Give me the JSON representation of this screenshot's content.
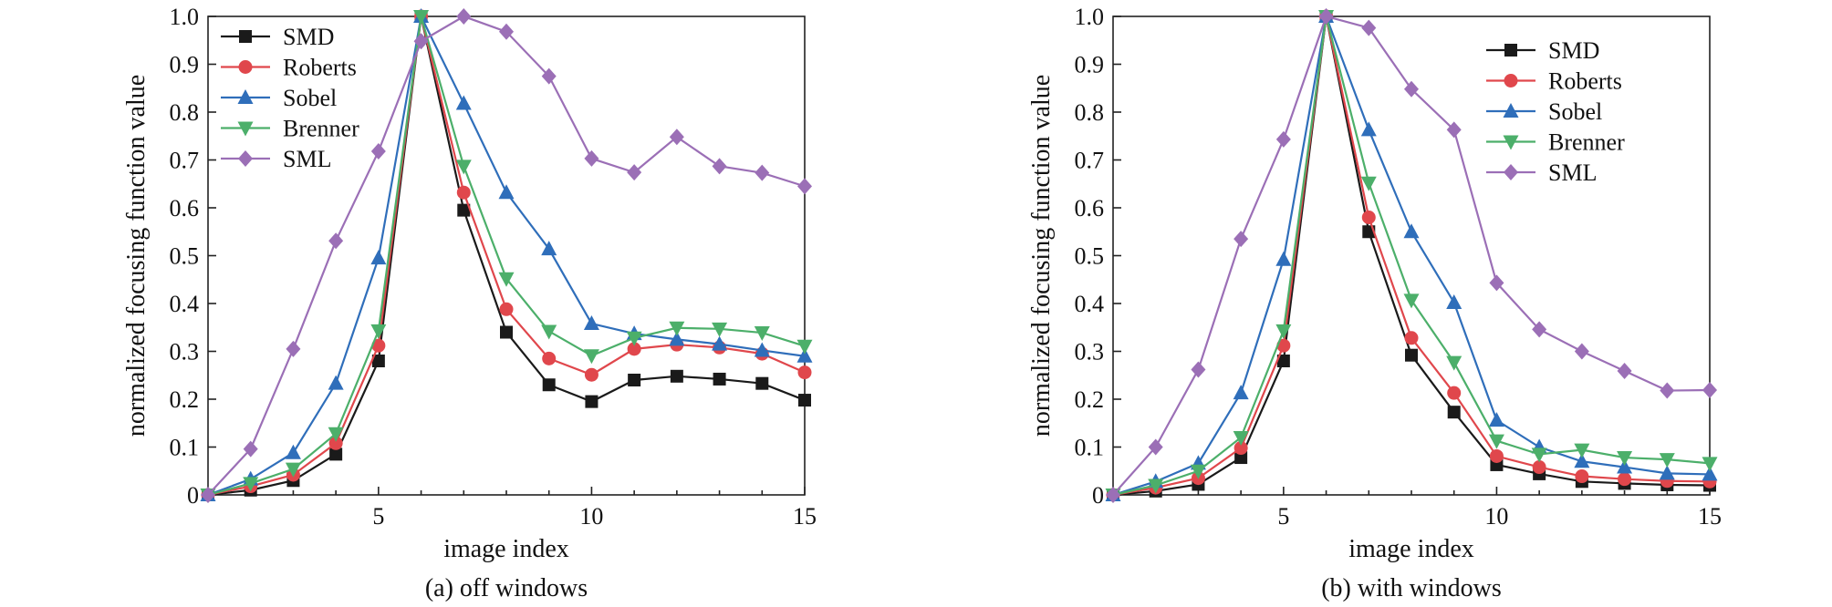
{
  "chart_data": [
    {
      "type": "line",
      "caption": "(a) off windows",
      "xlabel": "image index",
      "ylabel": "normalized focusing function value",
      "xlim": [
        1,
        15
      ],
      "ylim": [
        0,
        1.0
      ],
      "xticks": [
        5,
        10,
        15
      ],
      "yticks": [
        0,
        0.1,
        0.2,
        0.3,
        0.4,
        0.5,
        0.6,
        0.7,
        0.8,
        0.9,
        1.0
      ],
      "ytick_labels": [
        "0",
        "0.1",
        "0.2",
        "0.3",
        "0.4",
        "0.5",
        "0.6",
        "0.7",
        "0.8",
        "0.9",
        "1.0"
      ],
      "legend_position": "top-left",
      "grid": false,
      "x": [
        1,
        2,
        3,
        4,
        5,
        6,
        7,
        8,
        9,
        10,
        11,
        12,
        13,
        14,
        15
      ],
      "series": [
        {
          "name": "SMD",
          "color": "#1a1a1a",
          "marker": "square",
          "values": [
            0,
            0.01,
            0.03,
            0.085,
            0.28,
            1.0,
            0.595,
            0.34,
            0.23,
            0.195,
            0.24,
            0.248,
            0.242,
            0.233,
            0.198
          ]
        },
        {
          "name": "Roberts",
          "color": "#e0474c",
          "marker": "circle",
          "values": [
            0,
            0.018,
            0.042,
            0.108,
            0.312,
            1.0,
            0.632,
            0.388,
            0.285,
            0.251,
            0.305,
            0.314,
            0.308,
            0.295,
            0.256
          ]
        },
        {
          "name": "Sobel",
          "color": "#2f6eba",
          "marker": "triangle-up",
          "values": [
            0,
            0.033,
            0.088,
            0.233,
            0.495,
            1.0,
            0.818,
            0.632,
            0.514,
            0.358,
            0.337,
            0.325,
            0.315,
            0.302,
            0.29
          ]
        },
        {
          "name": "Brenner",
          "color": "#4caf6a",
          "marker": "triangle-down",
          "values": [
            0,
            0.024,
            0.054,
            0.128,
            0.343,
            1.0,
            0.687,
            0.452,
            0.342,
            0.291,
            0.328,
            0.349,
            0.347,
            0.339,
            0.311
          ]
        },
        {
          "name": "SML",
          "color": "#9b6fb6",
          "marker": "diamond",
          "values": [
            0,
            0.096,
            0.305,
            0.531,
            0.718,
            0.948,
            1.0,
            0.968,
            0.875,
            0.703,
            0.674,
            0.748,
            0.687,
            0.673,
            0.645
          ]
        }
      ]
    },
    {
      "type": "line",
      "caption": "(b) with windows",
      "xlabel": "image index",
      "ylabel": "normalized focusing function value",
      "xlim": [
        1,
        15
      ],
      "ylim": [
        0,
        1.0
      ],
      "xticks": [
        5,
        10,
        15
      ],
      "yticks": [
        0,
        0.1,
        0.2,
        0.3,
        0.4,
        0.5,
        0.6,
        0.7,
        0.8,
        0.9,
        1.0
      ],
      "ytick_labels": [
        "0",
        "0.1",
        "0.2",
        "0.3",
        "0.4",
        "0.5",
        "0.6",
        "0.7",
        "0.8",
        "0.9",
        "1.0"
      ],
      "legend_position": "top-right",
      "grid": false,
      "x": [
        1,
        2,
        3,
        4,
        5,
        6,
        7,
        8,
        9,
        10,
        11,
        12,
        13,
        14,
        15
      ],
      "series": [
        {
          "name": "SMD",
          "color": "#1a1a1a",
          "marker": "square",
          "values": [
            0,
            0.008,
            0.022,
            0.078,
            0.28,
            1.0,
            0.55,
            0.292,
            0.173,
            0.063,
            0.044,
            0.028,
            0.024,
            0.021,
            0.02
          ]
        },
        {
          "name": "Roberts",
          "color": "#e0474c",
          "marker": "circle",
          "values": [
            0,
            0.015,
            0.035,
            0.098,
            0.312,
            1.0,
            0.58,
            0.328,
            0.213,
            0.081,
            0.058,
            0.039,
            0.033,
            0.029,
            0.028
          ]
        },
        {
          "name": "Sobel",
          "color": "#2f6eba",
          "marker": "triangle-up",
          "values": [
            0,
            0.028,
            0.066,
            0.213,
            0.492,
            1.0,
            0.763,
            0.55,
            0.402,
            0.156,
            0.1,
            0.07,
            0.058,
            0.045,
            0.043
          ]
        },
        {
          "name": "Brenner",
          "color": "#4caf6a",
          "marker": "triangle-down",
          "values": [
            0,
            0.02,
            0.05,
            0.12,
            0.343,
            1.0,
            0.652,
            0.407,
            0.277,
            0.113,
            0.085,
            0.094,
            0.078,
            0.074,
            0.066
          ]
        },
        {
          "name": "SML",
          "color": "#9b6fb6",
          "marker": "diamond",
          "values": [
            0,
            0.1,
            0.262,
            0.535,
            0.743,
            1.0,
            0.976,
            0.848,
            0.763,
            0.443,
            0.346,
            0.3,
            0.259,
            0.218,
            0.219
          ]
        }
      ]
    }
  ]
}
